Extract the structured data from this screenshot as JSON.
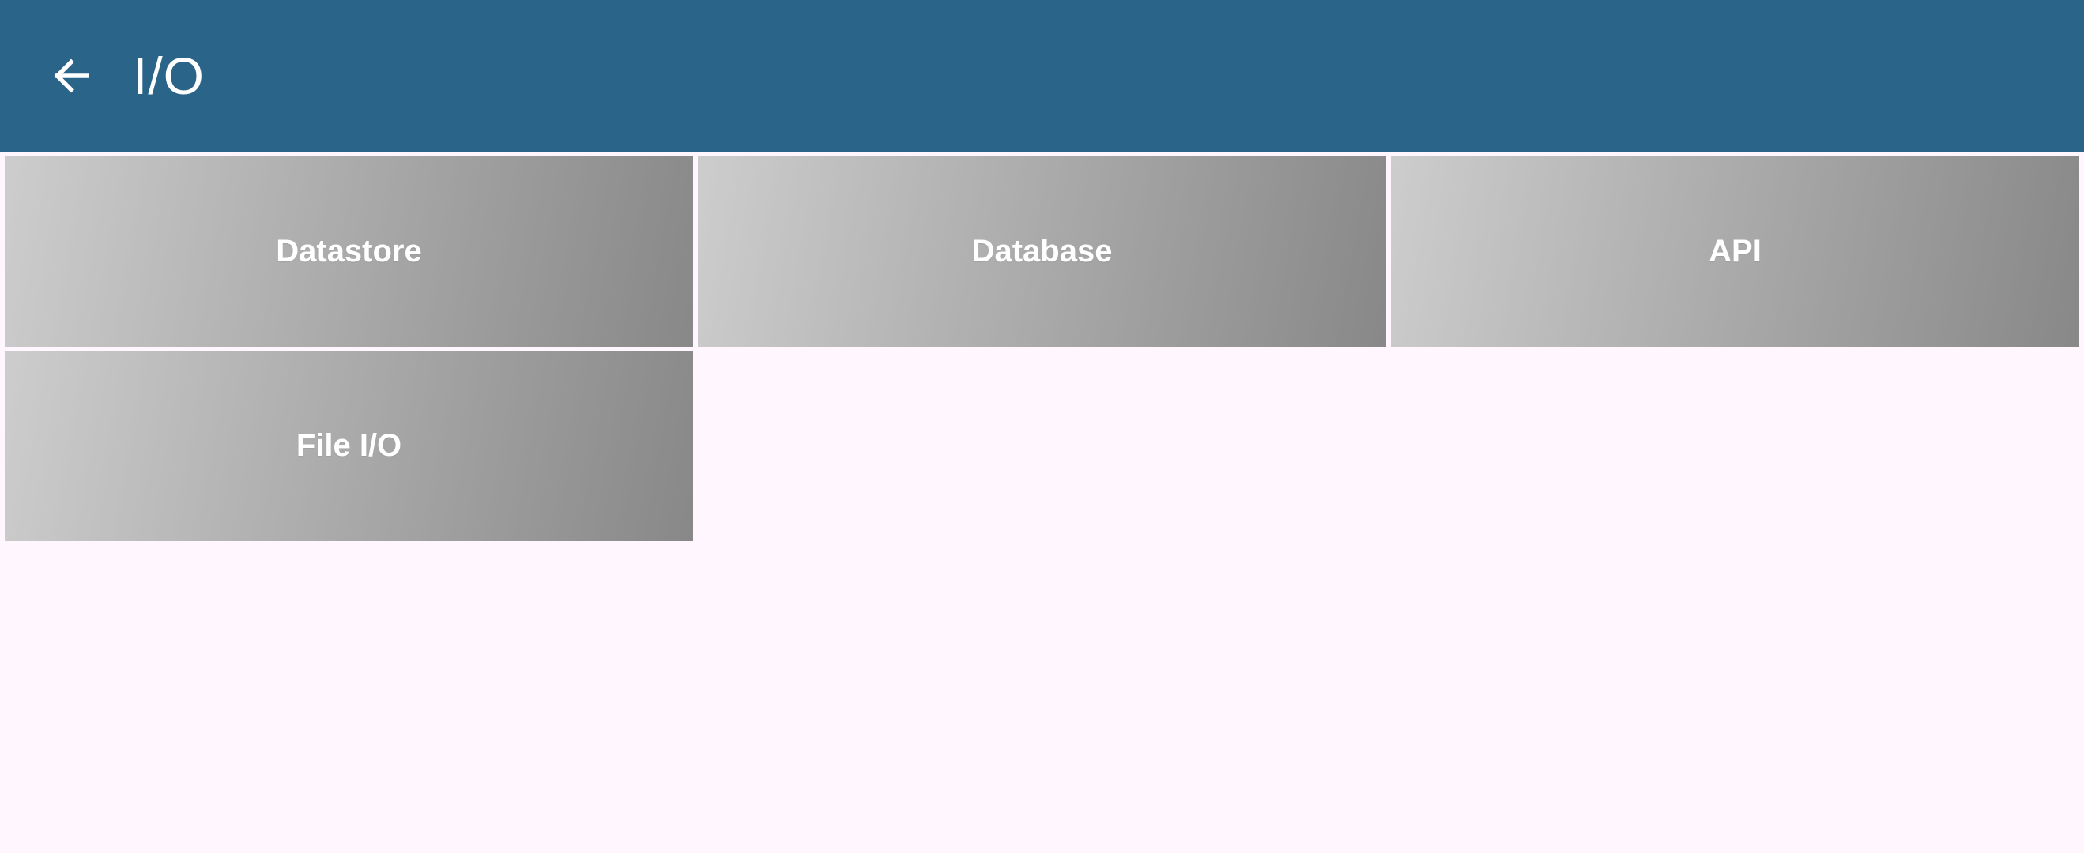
{
  "header": {
    "title": "I/O",
    "back_icon": "arrow-left-icon",
    "background_color": "#2a6488"
  },
  "tiles": [
    {
      "label": "Datastore"
    },
    {
      "label": "Database"
    },
    {
      "label": "API"
    },
    {
      "label": "File I/O"
    }
  ],
  "colors": {
    "page_background": "#fff7fd",
    "tile_gradient_start": "#cdcdcd",
    "tile_gradient_end": "#888888",
    "tile_text": "#ffffff"
  }
}
